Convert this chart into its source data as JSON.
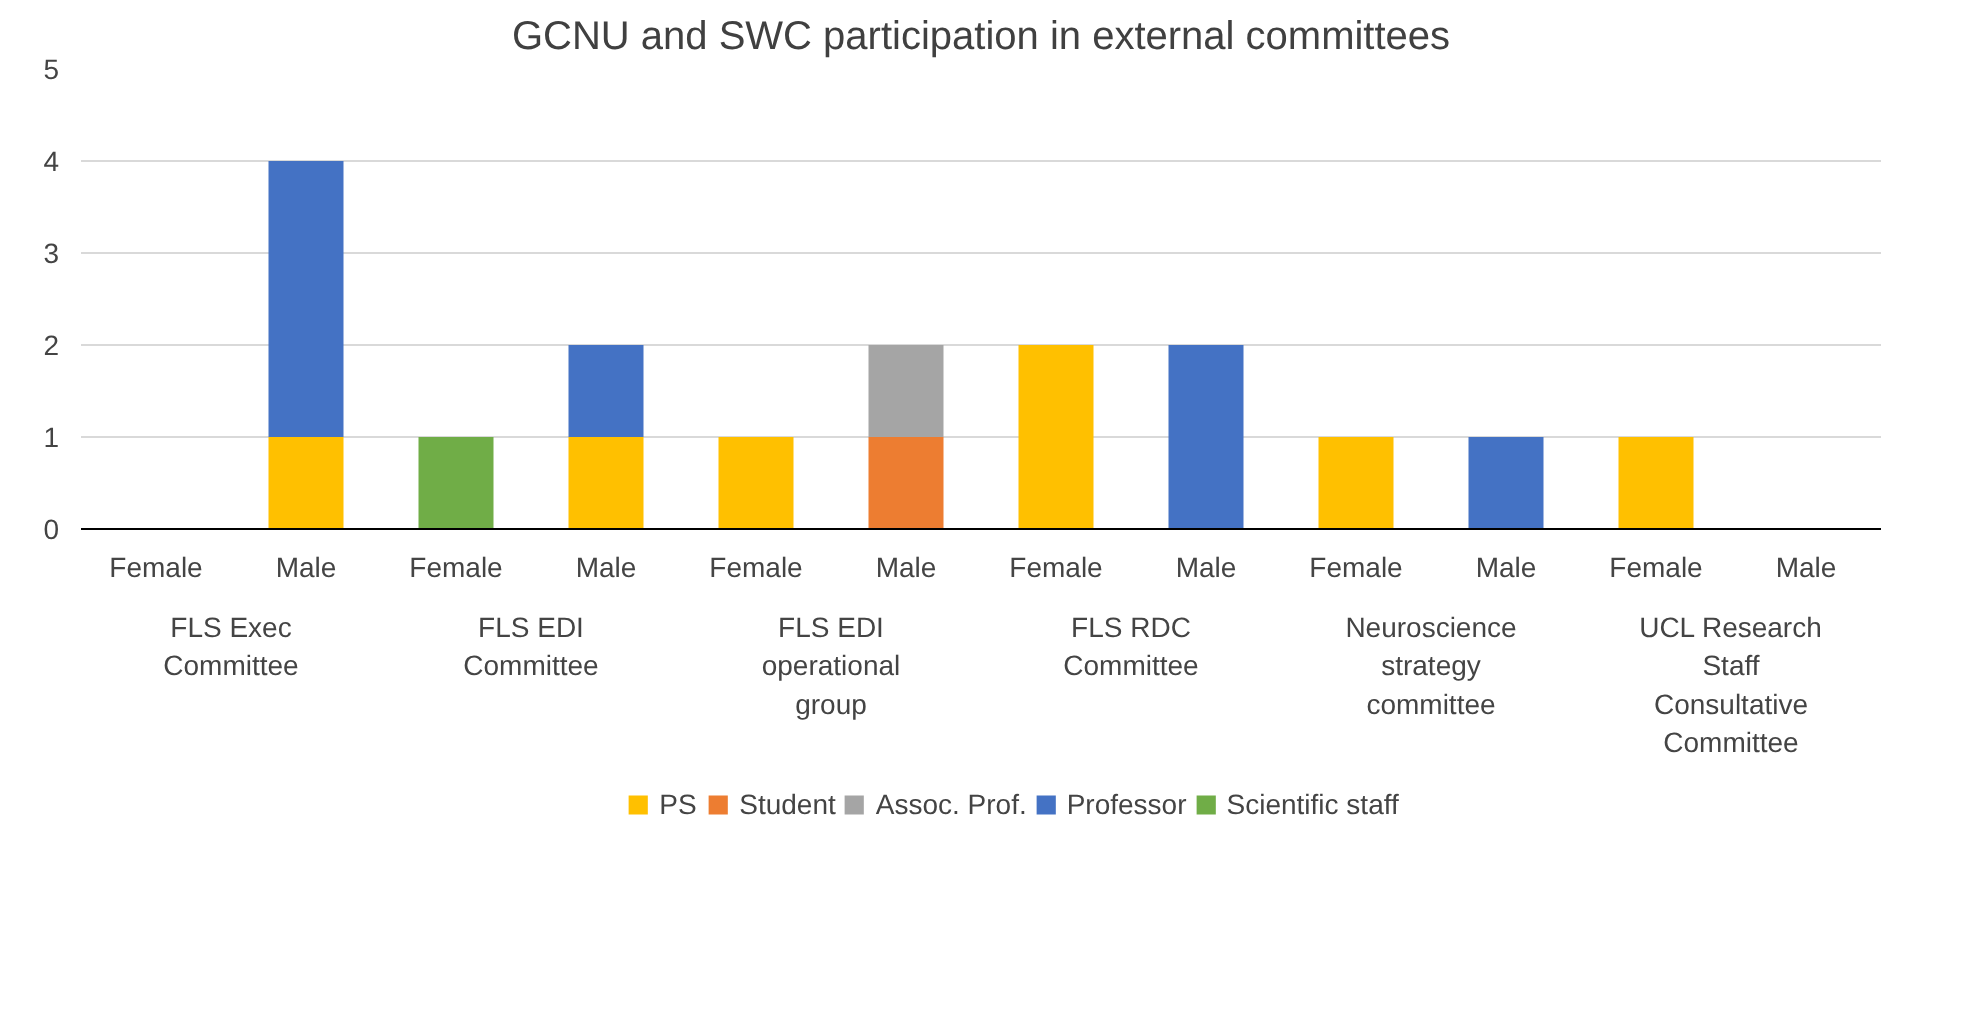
{
  "chart_data": {
    "type": "bar",
    "title": "GCNU and SWC participation in external committees",
    "stacked": true,
    "categories": [
      "Female",
      "Male",
      "Female",
      "Male",
      "Female",
      "Male",
      "Female",
      "Male",
      "Female",
      "Male",
      "Female",
      "Male"
    ],
    "series": [
      {
        "name": "PS",
        "color": "#ffc000",
        "values": [
          0,
          1,
          0,
          1,
          1,
          0,
          2,
          0,
          1,
          0,
          1,
          0
        ]
      },
      {
        "name": "Student",
        "color": "#ed7d31",
        "values": [
          0,
          0,
          0,
          0,
          0,
          1,
          0,
          0,
          0,
          0,
          0,
          0
        ]
      },
      {
        "name": "Assoc. Prof.",
        "color": "#a5a5a5",
        "values": [
          0,
          0,
          0,
          0,
          0,
          1,
          0,
          0,
          0,
          0,
          0,
          0
        ]
      },
      {
        "name": "Professor",
        "color": "#4472c4",
        "values": [
          0,
          3,
          0,
          1,
          0,
          0,
          0,
          2,
          0,
          1,
          0,
          0
        ]
      },
      {
        "name": "Scientific staff",
        "color": "#70ad47",
        "values": [
          0,
          0,
          1,
          0,
          0,
          0,
          0,
          0,
          0,
          0,
          0,
          0
        ]
      }
    ],
    "annotations": [
      "FLS Exec Committee",
      "FLS EDI Committee",
      "FLS EDI operational group",
      "FLS RDC Committee",
      "Neuroscience strategy committee",
      "UCL Research Staff Consultative Committee"
    ],
    "ylim": [
      0,
      5
    ],
    "yticks": [
      0,
      1,
      2,
      3,
      4,
      5
    ],
    "grid": "y",
    "legend": "bottom"
  }
}
